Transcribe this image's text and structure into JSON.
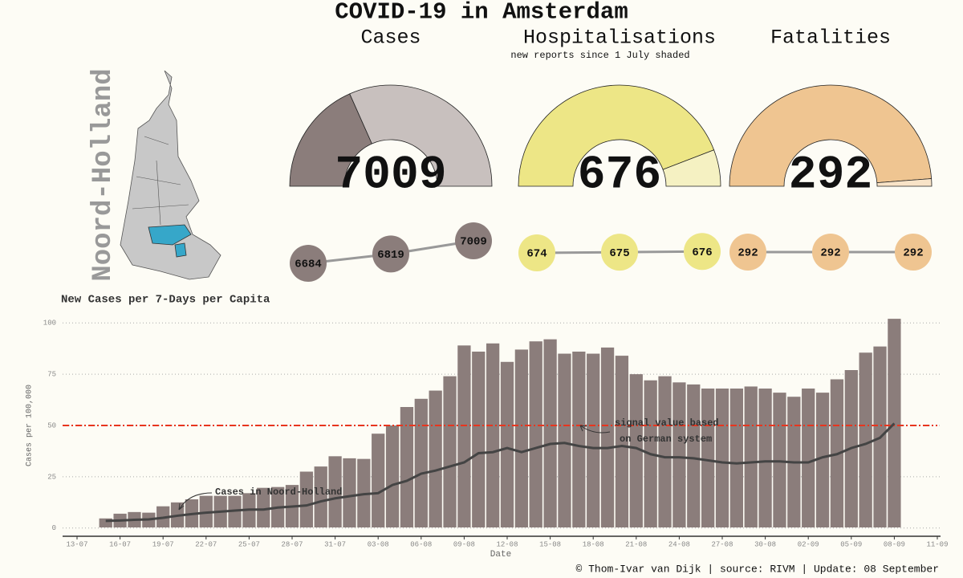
{
  "title": "COVID-19 in Amsterdam",
  "map_label": "Noord-Holland",
  "footer": "© Thom-Ivar van Dijk | source: RIVM | Update: 08 September",
  "chart_data": [
    {
      "type": "gauge",
      "title": "Cases",
      "total": 7009,
      "values": [
        2570,
        4439
      ],
      "colors": [
        "#8b7d7b",
        "#c8c0be"
      ]
    },
    {
      "type": "gauge",
      "title": "Hospitalisations",
      "subtitle": "new reports since 1 July shaded",
      "total": 676,
      "values": [
        597,
        79
      ],
      "colors": [
        "#ede686",
        "#f5f1c2"
      ]
    },
    {
      "type": "gauge",
      "title": "Fatalities",
      "total": 292,
      "values": [
        285,
        7
      ],
      "colors": [
        "#efc591",
        "#f8e3c7"
      ]
    },
    {
      "type": "dots",
      "values": [
        6684,
        6819,
        7009
      ],
      "color": "#8b7d7b"
    },
    {
      "type": "dots",
      "values": [
        674,
        675,
        676
      ],
      "color": "#ede686"
    },
    {
      "type": "dots",
      "values": [
        292,
        292,
        292
      ],
      "color": "#efc591"
    },
    {
      "type": "bar",
      "title": "New Cases per 7-Days per Capita",
      "x_label": "Date",
      "y_label": "Cases per 100,000",
      "categories": [
        "13-07",
        null,
        null,
        "16-07",
        null,
        null,
        "19-07",
        null,
        null,
        "22-07",
        null,
        null,
        "25-07",
        null,
        null,
        "28-07",
        null,
        null,
        "31-07",
        null,
        null,
        "03-08",
        null,
        null,
        "06-08",
        null,
        null,
        "09-08",
        null,
        null,
        "12-08",
        null,
        null,
        "15-08",
        null,
        null,
        "18-08",
        null,
        null,
        "21-08",
        null,
        null,
        "24-08",
        null,
        null,
        "27-08",
        null,
        null,
        "30-08",
        null,
        null,
        "02-09",
        null,
        null,
        "05-09",
        null,
        null,
        "08-09",
        null,
        null,
        "11-09"
      ],
      "series": [
        {
          "type": "bar",
          "color": "#8b7d7b",
          "values": [
            null,
            null,
            4.7,
            7,
            7.8,
            7.5,
            10.6,
            12.5,
            14,
            15.7,
            15.7,
            15.7,
            17,
            19.6,
            20,
            21,
            27.5,
            30,
            35,
            34,
            33.7,
            46,
            50,
            59,
            63,
            67,
            74,
            89,
            86,
            90,
            81,
            87,
            91,
            92,
            85,
            86,
            85,
            88,
            84,
            75,
            72,
            74,
            71,
            70,
            68,
            68,
            68,
            69,
            68,
            66,
            64,
            68,
            66,
            72.5,
            77,
            85.5,
            88.5,
            102,
            null,
            null,
            null
          ]
        },
        {
          "type": "line",
          "color": "#444444",
          "values": [
            null,
            null,
            3.5,
            3.7,
            4,
            4.2,
            5,
            6,
            6.8,
            7.5,
            8,
            8.5,
            9,
            9,
            10,
            10.5,
            11,
            13,
            14.5,
            15.5,
            16.5,
            17,
            21,
            23,
            26.5,
            28,
            30,
            32,
            36.5,
            37,
            39,
            37,
            39,
            41,
            41.5,
            40,
            39,
            39,
            40,
            39,
            36,
            34.5,
            34.5,
            34,
            33,
            32,
            31.5,
            32,
            32.5,
            32.5,
            32,
            32,
            34.5,
            36,
            39,
            41,
            44,
            51,
            null,
            null,
            null
          ]
        }
      ],
      "ylim": [
        -4,
        104
      ],
      "yticks": [
        0,
        25,
        50,
        75,
        100
      ],
      "grid": true,
      "threshold": 50,
      "threshold_color": "#e8351e",
      "annotations": [
        {
          "text": "Cases in Noord-Holland"
        },
        {
          "text": [
            "signal value based",
            "on German system"
          ]
        }
      ]
    }
  ]
}
